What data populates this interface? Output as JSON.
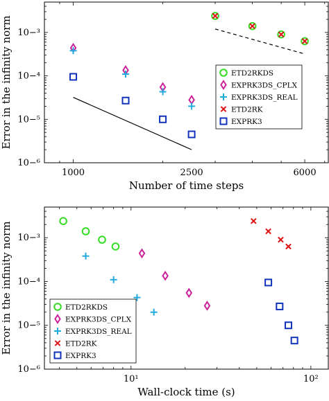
{
  "chart_data": [
    {
      "type": "scatter",
      "xlabel": "Number of time steps",
      "ylabel": "Error in the infinity norm",
      "xscale": "log",
      "yscale": "log",
      "xlim": [
        800,
        7200
      ],
      "ylim": [
        1e-06,
        0.005
      ],
      "xticks": [
        1000,
        2500,
        6000
      ],
      "xtick_labels": [
        "1000",
        "2500",
        "6000"
      ],
      "yticks": [
        1e-06,
        1e-05,
        0.0001,
        0.001
      ],
      "ytick_labels": [
        "10−⁶",
        "10−⁵",
        "10−⁴",
        "10−³"
      ],
      "legend_position": "lower-right",
      "series": [
        {
          "name": "ETD2RKDS",
          "marker": "circle",
          "color": "#33dd22",
          "x": [
            3000,
            4000,
            5000,
            6000
          ],
          "y": [
            0.0024,
            0.0014,
            0.0009,
            0.00063
          ]
        },
        {
          "name": "EXPRK3DS_CPLX",
          "marker": "diamond",
          "color": "#cc2299",
          "x": [
            1000,
            1500,
            2000,
            2500
          ],
          "y": [
            0.00044,
            0.000135,
            5.5e-05,
            2.8e-05
          ]
        },
        {
          "name": "EXPRK3DS_REAL",
          "marker": "plus",
          "color": "#22aadd",
          "x": [
            1000,
            1500,
            2000,
            2500
          ],
          "y": [
            0.00038,
            0.00011,
            4.3e-05,
            2e-05
          ]
        },
        {
          "name": "ETD2RK",
          "marker": "cross",
          "color": "#dd1111",
          "x": [
            3000,
            4000,
            5000,
            6000
          ],
          "y": [
            0.0024,
            0.0014,
            0.0009,
            0.00063
          ]
        },
        {
          "name": "EXPRK3",
          "marker": "square",
          "color": "#1133bb",
          "x": [
            1000,
            1500,
            2000,
            2500
          ],
          "y": [
            9.5e-05,
            2.7e-05,
            1e-05,
            4.5e-06
          ]
        }
      ],
      "reference_lines": [
        {
          "style": "solid",
          "x": [
            1000,
            2500
          ],
          "y": [
            3.2e-05,
            2e-06
          ]
        },
        {
          "style": "dashed",
          "x": [
            3000,
            6000
          ],
          "y": [
            0.0012,
            0.00032
          ]
        }
      ]
    },
    {
      "type": "scatter",
      "xlabel": "Wall-clock time (s)",
      "ylabel": "Error in the infinity norm",
      "xscale": "log",
      "yscale": "log",
      "xlim": [
        3.3,
        125
      ],
      "ylim": [
        1e-06,
        0.005
      ],
      "xticks": [
        10,
        100
      ],
      "xtick_labels": [
        "10¹",
        "10²"
      ],
      "yticks": [
        1e-06,
        1e-05,
        0.0001,
        0.001
      ],
      "ytick_labels": [
        "10−⁶",
        "10−⁵",
        "10−⁴",
        "10−³"
      ],
      "legend_position": "lower-left",
      "series": [
        {
          "name": "ETD2RKDS",
          "marker": "circle",
          "color": "#33dd22",
          "x": [
            4.2,
            5.6,
            6.9,
            8.2
          ],
          "y": [
            0.0024,
            0.0014,
            0.0009,
            0.00063
          ]
        },
        {
          "name": "EXPRK3DS_CPLX",
          "marker": "diamond",
          "color": "#cc2299",
          "x": [
            11.5,
            15.5,
            21,
            26.5
          ],
          "y": [
            0.00044,
            0.000135,
            5.5e-05,
            2.8e-05
          ]
        },
        {
          "name": "EXPRK3DS_REAL",
          "marker": "plus",
          "color": "#22aadd",
          "x": [
            5.6,
            8,
            10.8,
            13.4
          ],
          "y": [
            0.00038,
            0.00011,
            4.3e-05,
            2e-05
          ]
        },
        {
          "name": "ETD2RK",
          "marker": "cross",
          "color": "#dd1111",
          "x": [
            48,
            58,
            68,
            75
          ],
          "y": [
            0.0024,
            0.0014,
            0.0009,
            0.00063
          ]
        },
        {
          "name": "EXPRK3",
          "marker": "square",
          "color": "#1133bb",
          "x": [
            58,
            67,
            75,
            81
          ],
          "y": [
            9.5e-05,
            2.7e-05,
            1e-05,
            4.5e-06
          ]
        }
      ]
    }
  ]
}
